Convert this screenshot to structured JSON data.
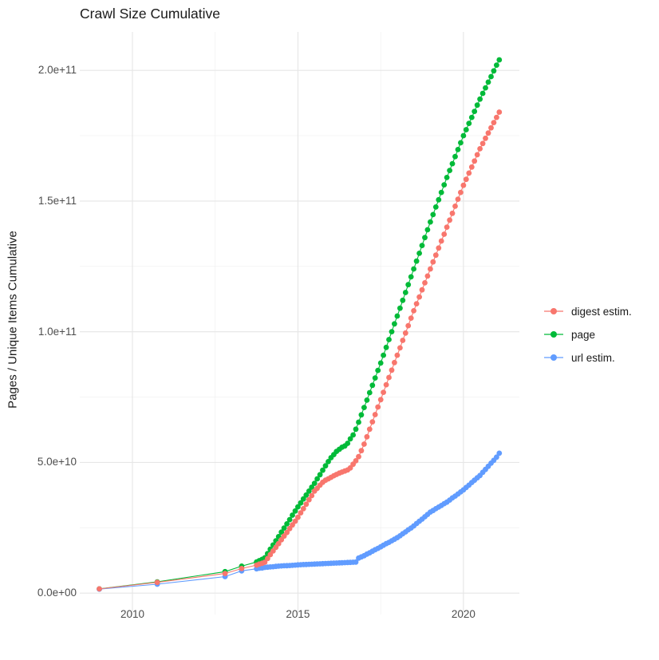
{
  "page": {
    "title_text": "Crawl Size Cumulative"
  },
  "axes": {
    "y_title": "Pages / Unique Items Cumulative",
    "y_ticks": [
      {
        "value_e9": 0,
        "label": "0.0e+00"
      },
      {
        "value_e9": 50,
        "label": "5.0e+10"
      },
      {
        "value_e9": 100,
        "label": "1.0e+11"
      },
      {
        "value_e9": 150,
        "label": "1.5e+11"
      },
      {
        "value_e9": 200,
        "label": "2.0e+11"
      }
    ],
    "x_ticks": [
      {
        "value": 2010,
        "label": "2010"
      },
      {
        "value": 2015,
        "label": "2015"
      },
      {
        "value": 2020,
        "label": "2020"
      }
    ]
  },
  "legend": {
    "items": [
      {
        "label": "digest estim.",
        "color": "#F8766D"
      },
      {
        "label": "page",
        "color": "#00BA38"
      },
      {
        "label": "url estim.",
        "color": "#619CFF"
      }
    ]
  },
  "chart_data": {
    "type": "scatter",
    "title": "Crawl Size Cumulative",
    "xlabel": "",
    "ylabel": "Pages / Unique Items Cumulative",
    "value_unit": "pages/items, values_e9 are billions (multiply by 1e9)",
    "x_domain": [
      2008.41,
      2021.69
    ],
    "y_domain_e9": [
      -8.2,
      214.7
    ],
    "x_major_ticks": [
      2010,
      2015,
      2020
    ],
    "x_minor_ticks": [
      2012.5,
      2017.5
    ],
    "y_major_ticks_e9": [
      0,
      50,
      100,
      150,
      200
    ],
    "y_minor_ticks_e9": [
      25,
      75,
      125,
      175
    ],
    "grid": true,
    "legend_position": "right",
    "draw_order": [
      1,
      2,
      0
    ],
    "point_radius": 3.4,
    "series": [
      {
        "name": "digest estim.",
        "color": "#F8766D",
        "early_points": [
          [
            2009.0,
            1.6
          ],
          [
            2010.75,
            4.1
          ],
          [
            2012.8,
            7.5
          ],
          [
            2013.3,
            9.4
          ]
        ],
        "monthly": {
          "start_year": 2013.75,
          "step_years": 0.0833333,
          "values_e9": [
            10.7,
            11.1,
            11.4,
            11.8,
            13.2,
            14.7,
            16.1,
            17.5,
            18.9,
            20.4,
            21.8,
            23.2,
            24.7,
            26.1,
            27.5,
            29,
            30.7,
            32.3,
            34,
            35.7,
            37.3,
            39,
            40.1,
            41.3,
            42.4,
            43.2,
            43.7,
            44.3,
            44.9,
            45.4,
            45.9,
            46.3,
            46.7,
            47.1,
            47.9,
            49.3,
            50.6,
            52.2,
            54.5,
            57,
            59.8,
            62.7,
            65.5,
            68.3,
            71.2,
            74,
            76.8,
            79.7,
            82.5,
            85.3,
            88.2,
            91,
            93.8,
            96.7,
            99.5,
            102.3,
            105.2,
            108,
            110.7,
            113.3,
            116,
            118.7,
            121.3,
            124,
            126.7,
            129.3,
            132,
            134.7,
            137.3,
            140,
            142.7,
            145.3,
            148,
            150.7,
            153.3,
            156,
            158.3,
            160.7,
            163,
            165.3,
            167.7,
            170,
            172,
            174,
            176,
            178,
            180,
            182,
            184
          ]
        }
      },
      {
        "name": "page",
        "color": "#00BA38",
        "early_points": [
          [
            2009.0,
            1.6
          ],
          [
            2010.75,
            4.3
          ],
          [
            2012.8,
            8.2
          ],
          [
            2013.3,
            10.3
          ]
        ],
        "monthly": {
          "start_year": 2013.75,
          "step_years": 0.0833333,
          "values_e9": [
            11.9,
            12.4,
            12.9,
            13.5,
            15.1,
            16.8,
            18.4,
            20,
            21.6,
            23.3,
            24.9,
            26.5,
            28.1,
            29.8,
            31.4,
            33,
            34.5,
            36,
            37.5,
            39,
            40.5,
            42,
            43.7,
            45.3,
            47,
            48.7,
            50.3,
            51.8,
            53,
            54.2,
            55,
            55.8,
            56.3,
            57.3,
            59,
            60.5,
            62.7,
            65.4,
            68.2,
            71,
            73.8,
            76.7,
            79.5,
            82.3,
            85.2,
            88,
            91,
            94,
            97,
            100,
            103,
            106,
            109,
            112,
            115,
            118,
            121,
            124,
            127,
            130,
            133,
            136,
            139,
            142,
            144.8,
            147.7,
            150.5,
            153.3,
            156.2,
            159,
            161.7,
            164.3,
            167,
            169.7,
            172.3,
            175,
            177.3,
            179.7,
            182,
            184.3,
            186.7,
            189,
            191.2,
            193.3,
            195.5,
            197.6,
            199.8,
            202,
            204
          ]
        }
      },
      {
        "name": "url estim.",
        "color": "#619CFF",
        "early_points": [
          [
            2009.0,
            1.5
          ],
          [
            2010.75,
            3.4
          ],
          [
            2012.8,
            6.3
          ],
          [
            2013.3,
            8.5
          ]
        ],
        "monthly": {
          "start_year": 2013.75,
          "step_years": 0.0833333,
          "values_e9": [
            9.3,
            9.5,
            9.6,
            9.8,
            9.9,
            10,
            10.1,
            10.2,
            10.3,
            10.4,
            10.45,
            10.5,
            10.55,
            10.6,
            10.7,
            10.8,
            10.85,
            10.9,
            10.95,
            11,
            11.05,
            11.1,
            11.15,
            11.2,
            11.25,
            11.3,
            11.35,
            11.4,
            11.45,
            11.5,
            11.55,
            11.6,
            11.65,
            11.7,
            11.75,
            11.8,
            11.85,
            13.4,
            13.85,
            14.3,
            14.9,
            15.4,
            16,
            16.6,
            17.1,
            17.7,
            18.3,
            18.9,
            19.4,
            20,
            20.6,
            21.2,
            21.9,
            22.7,
            23.4,
            24.2,
            24.9,
            25.7,
            26.6,
            27.5,
            28.3,
            29.2,
            30.1,
            31,
            31.6,
            32.3,
            32.9,
            33.5,
            34.2,
            34.8,
            35.6,
            36.4,
            37.1,
            37.9,
            38.7,
            39.5,
            40.4,
            41.3,
            42.3,
            43.2,
            44.1,
            45,
            46.2,
            47.3,
            48.5,
            49.7,
            50.8,
            52,
            53.5
          ]
        }
      }
    ]
  }
}
